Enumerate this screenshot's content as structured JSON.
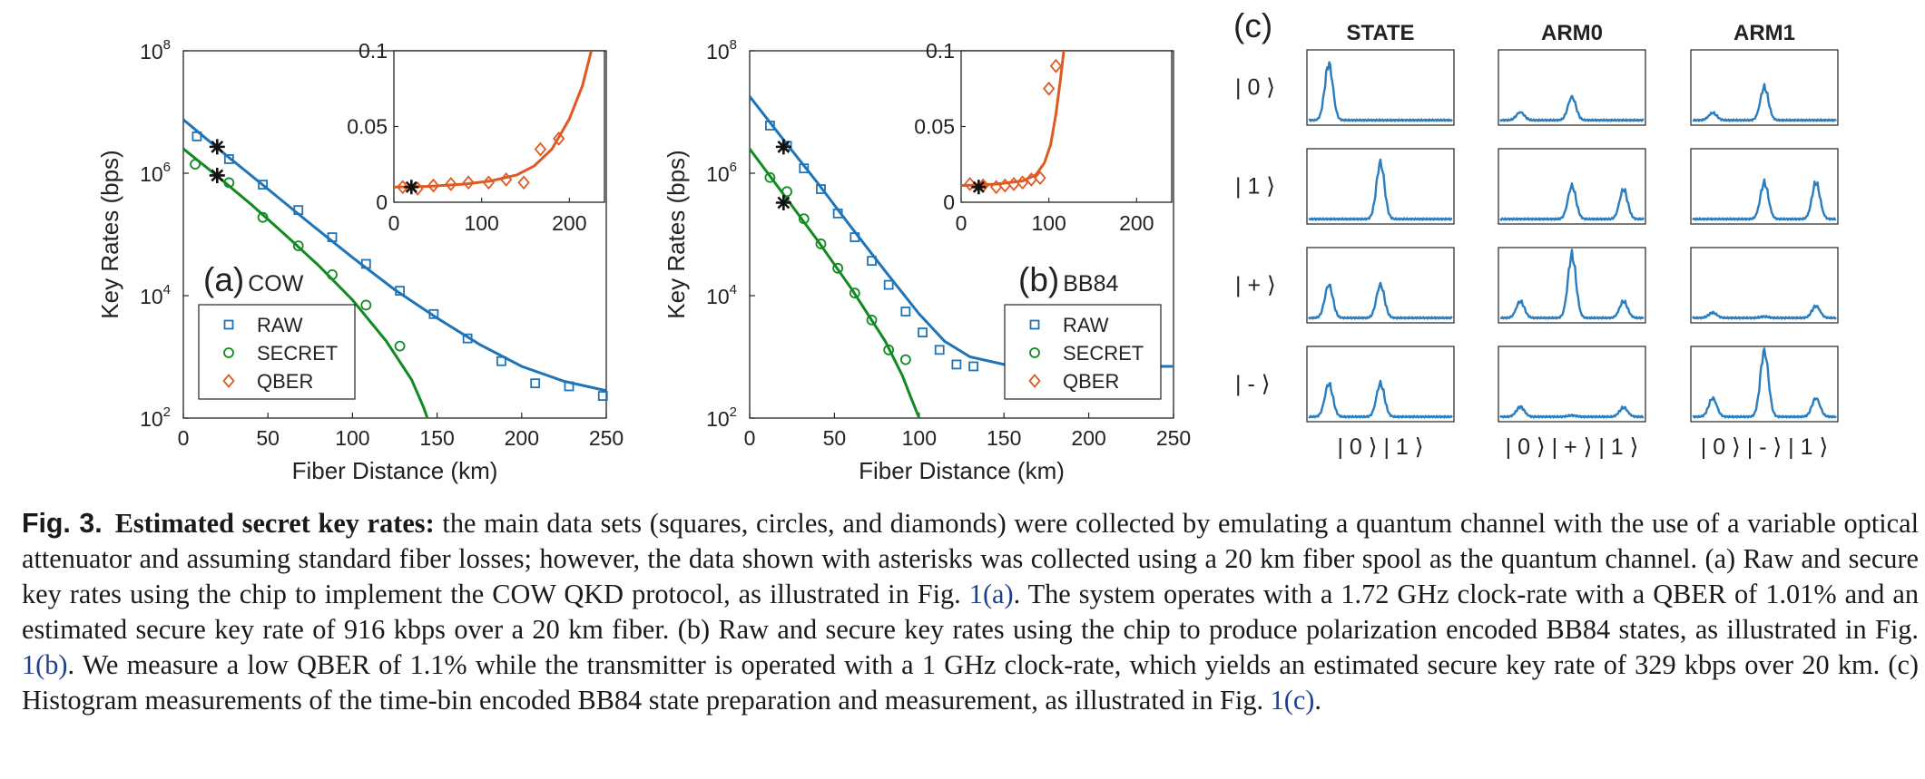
{
  "colors": {
    "raw": "#1f74b8",
    "secret": "#118a22",
    "qber": "#dd5a24",
    "trace": "#2a7dbf",
    "star": "#111111"
  },
  "chart_data": [
    {
      "type": "scatter",
      "panel_label": "(a)",
      "panel_sub": "COW",
      "xlabel": "Fiber Distance (km)",
      "ylabel": "Key Rates (bps)",
      "xlim": [
        0,
        250
      ],
      "ylim": [
        100,
        100000000
      ],
      "yscale": "log",
      "xticks": [
        "0",
        "50",
        "100",
        "150",
        "200",
        "250"
      ],
      "yticks": [
        {
          "base": "10",
          "exp": "2",
          "v": 100
        },
        {
          "base": "10",
          "exp": "4",
          "v": 10000
        },
        {
          "base": "10",
          "exp": "6",
          "v": 1000000
        },
        {
          "base": "10",
          "exp": "8",
          "v": 100000000
        }
      ],
      "legend": [
        "RAW",
        "SECRET",
        "QBER"
      ],
      "legend_position": "bottom-left",
      "series": [
        {
          "name": "RAW",
          "marker": "square",
          "x": [
            8,
            27,
            47,
            68,
            88,
            108,
            128,
            148,
            168,
            188,
            208,
            228,
            248
          ],
          "y": [
            4000000,
            1700000,
            650000,
            250000,
            90000,
            33000,
            12000,
            5000,
            2000,
            850,
            370,
            330,
            230
          ]
        },
        {
          "name": "SECRET",
          "marker": "circle",
          "x": [
            7,
            27,
            47,
            68,
            88,
            108,
            128
          ],
          "y": [
            1400000,
            700000,
            190000,
            65000,
            22000,
            7000,
            1500
          ]
        }
      ],
      "fits": [
        {
          "name": "RAW",
          "x": [
            0,
            25,
            50,
            75,
            100,
            125,
            150,
            175,
            200,
            225,
            250
          ],
          "y": [
            7500000,
            2000000,
            550000,
            150000,
            42000,
            12500,
            4300,
            1600,
            700,
            400,
            280
          ]
        },
        {
          "name": "SECRET",
          "x": [
            0,
            20,
            40,
            60,
            80,
            100,
            120,
            135,
            142,
            147
          ],
          "y": [
            2500000,
            900000,
            310000,
            100000,
            31000,
            8500,
            1800,
            420,
            150,
            60
          ]
        }
      ],
      "asterisks": {
        "x": [
          20,
          20
        ],
        "y": [
          2700000,
          920000
        ]
      },
      "inset": {
        "xlim": [
          0,
          240
        ],
        "ylim": [
          0,
          0.1
        ],
        "xticks": [
          "0",
          "100",
          "200"
        ],
        "yticks": [
          "0",
          "0.05",
          "0.1"
        ],
        "qber": {
          "x": [
            10,
            27,
            45,
            65,
            85,
            108,
            128,
            148,
            167,
            188
          ],
          "y": [
            0.01,
            0.009,
            0.011,
            0.012,
            0.013,
            0.013,
            0.015,
            0.013,
            0.035,
            0.042
          ]
        },
        "fit": {
          "x": [
            0,
            40,
            80,
            110,
            140,
            160,
            180,
            200,
            215,
            225
          ],
          "y": [
            0.01,
            0.0105,
            0.012,
            0.014,
            0.018,
            0.024,
            0.035,
            0.055,
            0.077,
            0.1
          ]
        },
        "asterisk": {
          "x": 20,
          "y": 0.01
        }
      }
    },
    {
      "type": "scatter",
      "panel_label": "(b)",
      "panel_sub": "BB84",
      "xlabel": "Fiber Distance (km)",
      "ylabel": "Key Rates (bps)",
      "xlim": [
        0,
        250
      ],
      "ylim": [
        100,
        100000000
      ],
      "yscale": "log",
      "xticks": [
        "0",
        "50",
        "100",
        "150",
        "200",
        "250"
      ],
      "yticks": [
        {
          "base": "10",
          "exp": "2",
          "v": 100
        },
        {
          "base": "10",
          "exp": "4",
          "v": 10000
        },
        {
          "base": "10",
          "exp": "6",
          "v": 1000000
        },
        {
          "base": "10",
          "exp": "8",
          "v": 100000000
        }
      ],
      "legend": [
        "RAW",
        "SECRET",
        "QBER"
      ],
      "legend_position": "bottom-right",
      "series": [
        {
          "name": "RAW",
          "marker": "square",
          "x": [
            12,
            22,
            32,
            42,
            52,
            62,
            72,
            82,
            92,
            102,
            112,
            122,
            132
          ],
          "y": [
            6000000,
            2800000,
            1200000,
            550000,
            220000,
            90000,
            37000,
            15000,
            5500,
            2500,
            1300,
            750,
            700
          ]
        },
        {
          "name": "SECRET",
          "marker": "circle",
          "x": [
            12,
            22,
            32,
            42,
            52,
            62,
            72,
            82,
            92
          ],
          "y": [
            850000,
            500000,
            180000,
            70000,
            28000,
            11000,
            4000,
            1300,
            900
          ]
        }
      ],
      "fits": [
        {
          "name": "RAW",
          "x": [
            0,
            20,
            40,
            60,
            80,
            100,
            115,
            130,
            150,
            175,
            200,
            250
          ],
          "y": [
            18000000,
            3500000,
            700000,
            130000,
            25000,
            5000,
            1800,
            1000,
            750,
            700,
            700,
            700
          ]
        },
        {
          "name": "SECRET",
          "x": [
            0,
            20,
            40,
            60,
            80,
            90,
            95,
            100
          ],
          "y": [
            2500000,
            450000,
            80000,
            13000,
            1800,
            500,
            220,
            100
          ]
        }
      ],
      "asterisks": {
        "x": [
          20,
          20
        ],
        "y": [
          2700000,
          330000
        ]
      },
      "inset": {
        "xlim": [
          0,
          240
        ],
        "ylim": [
          0,
          0.1
        ],
        "xticks": [
          "0",
          "100",
          "200"
        ],
        "yticks": [
          "0",
          "0.05",
          "0.1"
        ],
        "qber": {
          "x": [
            10,
            25,
            40,
            50,
            60,
            70,
            80,
            90,
            100,
            108
          ],
          "y": [
            0.012,
            0.011,
            0.01,
            0.011,
            0.012,
            0.013,
            0.015,
            0.016,
            0.075,
            0.09
          ]
        },
        "fit": {
          "x": [
            0,
            40,
            70,
            85,
            95,
            102,
            108,
            113,
            117
          ],
          "y": [
            0.011,
            0.012,
            0.014,
            0.018,
            0.026,
            0.038,
            0.058,
            0.08,
            0.1
          ]
        },
        "asterisk": {
          "x": 20,
          "y": 0.01
        }
      }
    }
  ],
  "panel_c": {
    "label": "(c)",
    "columns": [
      "STATE",
      "ARM0",
      "ARM1"
    ],
    "rows": [
      "| 0 ⟩",
      "| 1 ⟩",
      "| + ⟩",
      "| - ⟩"
    ],
    "bottom_labels": [
      "| 0 ⟩ | 1 ⟩",
      "| 0 ⟩ | + ⟩ | 1 ⟩",
      "| 0 ⟩ | - ⟩ | 1 ⟩"
    ],
    "peak_positions": [
      0.14,
      0.5,
      0.86
    ],
    "peaks": [
      [
        [
          0.85,
          0,
          0
        ],
        [
          0.12,
          0.35,
          0
        ],
        [
          0.11,
          0.5,
          0
        ]
      ],
      [
        [
          0,
          0.85,
          0
        ],
        [
          0,
          0.5,
          0.45
        ],
        [
          0,
          0.55,
          0.55
        ]
      ],
      [
        [
          0.5,
          0.5,
          0
        ],
        [
          0.25,
          0.95,
          0.25
        ],
        [
          0.08,
          0.02,
          0.18
        ]
      ],
      [
        [
          0.5,
          0.5,
          0
        ],
        [
          0.15,
          0.02,
          0.14
        ],
        [
          0.28,
          1.0,
          0.28
        ]
      ]
    ]
  },
  "caption": {
    "fig_label": "Fig. 3.",
    "title": "Estimated secret key rates:",
    "parts": [
      "the main data sets (squares, circles, and diamonds) were collected by emulating a quantum channel with the use of a variable optical attenuator and assuming standard fiber losses; however, the data shown with asterisks was collected using a 20 km fiber spool as the quantum channel. (a) Raw and secure key rates using the chip to implement the COW QKD protocol, as illustrated in Fig. ",
      "1(a)",
      ". The system operates with a 1.72 GHz clock-rate with a QBER of 1.01% and an estimated secure key rate of 916 kbps over a 20 km fiber. (b) Raw and secure key rates using the chip to produce polarization encoded BB84 states, as illustrated in Fig. ",
      "1(b)",
      ". We measure a low QBER of 1.1% while the transmitter is operated with a 1 GHz clock-rate, which yields an estimated secure key rate of 329 kbps over 20 km. (c) Histogram measurements of the time-bin encoded BB84 state preparation and measurement, as illustrated in Fig. ",
      "1(c)",
      "."
    ]
  }
}
